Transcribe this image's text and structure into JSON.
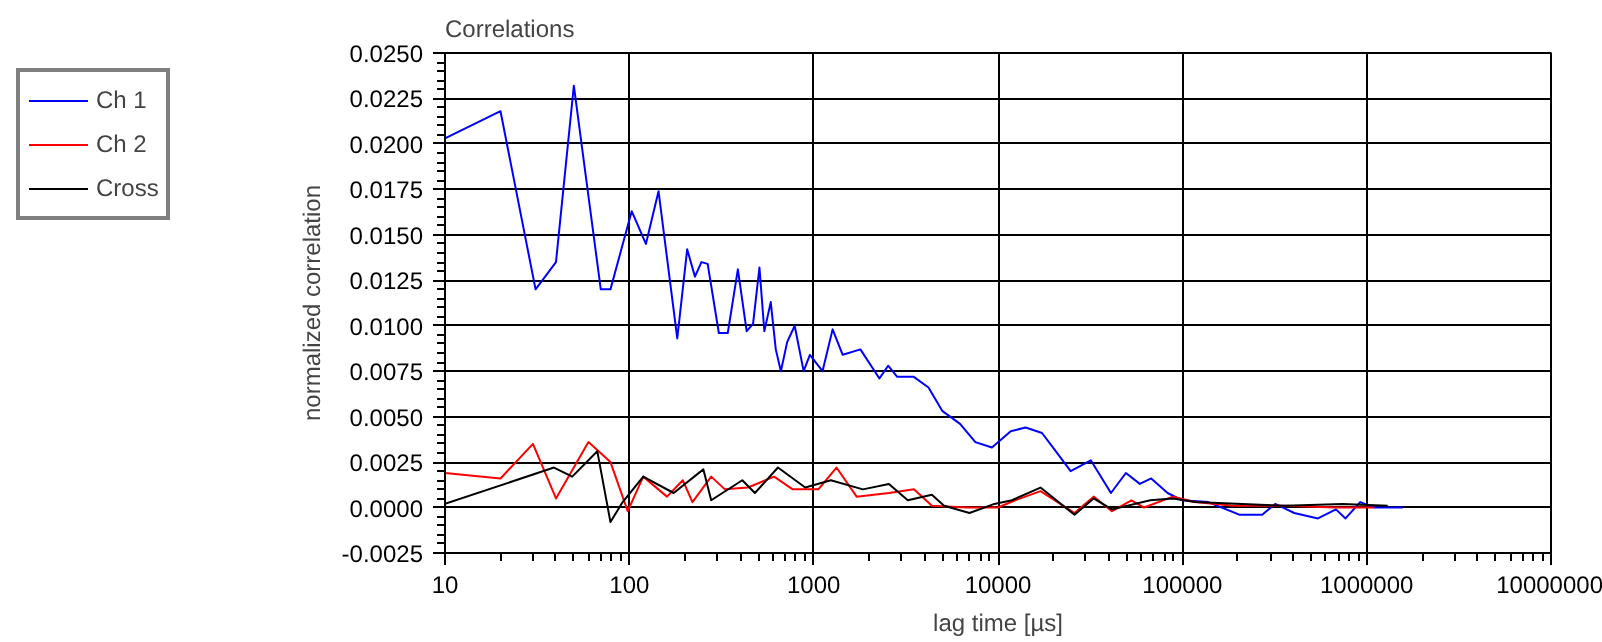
{
  "chart_data": {
    "type": "line",
    "title": "Correlations",
    "xlabel": "lag time [µs]",
    "ylabel": "normalized correlation",
    "log": "x",
    "grid": true,
    "legend": "top left",
    "marker": "none",
    "line_style": "solid",
    "xlim": [
      10,
      10000000
    ],
    "xticks": [
      10,
      100,
      1000,
      10000,
      100000,
      1000000,
      10000000
    ],
    "ylim": [
      -0.0025,
      0.025
    ],
    "yticks": [
      {
        "value": -0.0025,
        "label": "-0.0025"
      },
      {
        "value": 0,
        "label": "0.0000"
      },
      {
        "value": 0.0025,
        "label": "0.0025"
      },
      {
        "value": 0.005,
        "label": "0.0050"
      },
      {
        "value": 0.0075,
        "label": "0.0075"
      },
      {
        "value": 0.01,
        "label": "0.0100"
      },
      {
        "value": 0.0125,
        "label": "0.0125"
      },
      {
        "value": 0.015,
        "label": "0.0150"
      },
      {
        "value": 0.0175,
        "label": "0.0175"
      },
      {
        "value": 0.02,
        "label": "0.0200"
      },
      {
        "value": 0.0225,
        "label": "0.0225"
      },
      {
        "value": 0.025,
        "label": "0.0250"
      }
    ],
    "series": [
      {
        "name": "Ch 1",
        "color": "#0000ff",
        "x": [
          10,
          20,
          31,
          40,
          50,
          70,
          79,
          103,
          123,
          144,
          182,
          206,
          227,
          246,
          266,
          306,
          342,
          388,
          433,
          469,
          508,
          540,
          585,
          623,
          664,
          718,
          789,
          882,
          954,
          1117,
          1267,
          1437,
          1793,
          2273,
          2535,
          2832,
          3477,
          4197,
          4999,
          6228,
          7537,
          9269,
          11720,
          14130,
          17330,
          20560,
          24780,
          31870,
          41000,
          49400,
          58800,
          67800,
          83200,
          100000,
          138000,
          205000,
          271000,
          319000,
          405000,
          544000,
          681000,
          768000,
          922000,
          1100000,
          1570000
        ],
        "values": [
          0.0203,
          0.0218,
          0.012,
          0.0135,
          0.0232,
          0.012,
          0.012,
          0.0163,
          0.0145,
          0.0174,
          0.0093,
          0.0142,
          0.0127,
          0.0135,
          0.0134,
          0.0096,
          0.0096,
          0.0131,
          0.0097,
          0.0101,
          0.0132,
          0.0097,
          0.0113,
          0.0087,
          0.0075,
          0.0091,
          0.01,
          0.0075,
          0.0084,
          0.0075,
          0.0098,
          0.0084,
          0.0087,
          0.0071,
          0.0078,
          0.0072,
          0.0072,
          0.0066,
          0.0053,
          0.0046,
          0.0036,
          0.0033,
          0.0042,
          0.0044,
          0.0041,
          0.0031,
          0.002,
          0.0026,
          0.0008,
          0.0019,
          0.0013,
          0.0016,
          0.0008,
          0.0004,
          0.0003,
          -0.0004,
          -0.0004,
          0.0002,
          -0.0003,
          -0.0006,
          -0.0001,
          -0.0006,
          0.0003,
          0.0,
          0.0
        ]
      },
      {
        "name": "Ch 2",
        "color": "#ff0000",
        "x": [
          10,
          20,
          30,
          40,
          60,
          79,
          98,
          119,
          160,
          195,
          220,
          278,
          330,
          440,
          610,
          770,
          1060,
          1330,
          1710,
          2560,
          3500,
          4380,
          6800,
          10000,
          12400,
          17000,
          26000,
          33000,
          41500,
          53000,
          62000,
          89000,
          117000,
          189000,
          360000,
          680000,
          1100000
        ],
        "values": [
          0.0019,
          0.0016,
          0.0035,
          0.0005,
          0.0036,
          0.0025,
          -0.0002,
          0.0017,
          0.0006,
          0.0015,
          0.0003,
          0.0017,
          0.001,
          0.0011,
          0.0017,
          0.001,
          0.001,
          0.0022,
          0.0006,
          0.0008,
          0.001,
          0.0001,
          0.0,
          0.0,
          0.0004,
          0.0009,
          -0.0003,
          0.0006,
          -0.0002,
          0.0004,
          0.0,
          0.0006,
          0.0003,
          0.0001,
          0.0001,
          0.0,
          0.0
        ]
      },
      {
        "name": "Cross",
        "color": "#000000",
        "x": [
          10,
          39,
          49,
          67,
          79,
          92,
          119,
          174,
          252,
          278,
          410,
          480,
          640,
          900,
          1240,
          1850,
          2560,
          3240,
          4380,
          5100,
          7000,
          9550,
          11900,
          17000,
          26000,
          33000,
          41500,
          67000,
          89000,
          117000,
          360000,
          740000,
          1300000
        ],
        "values": [
          0.0002,
          0.0022,
          0.0017,
          0.0031,
          -0.0008,
          0.0003,
          0.0017,
          0.0008,
          0.0021,
          0.0004,
          0.0015,
          0.0008,
          0.0022,
          0.0011,
          0.0015,
          0.001,
          0.0013,
          0.0004,
          0.0007,
          0.0001,
          -0.0003,
          0.0002,
          0.0004,
          0.0011,
          -0.0004,
          0.0005,
          -0.0001,
          0.0004,
          0.0005,
          0.0003,
          0.0001,
          0.0002,
          0.0001
        ]
      }
    ]
  }
}
